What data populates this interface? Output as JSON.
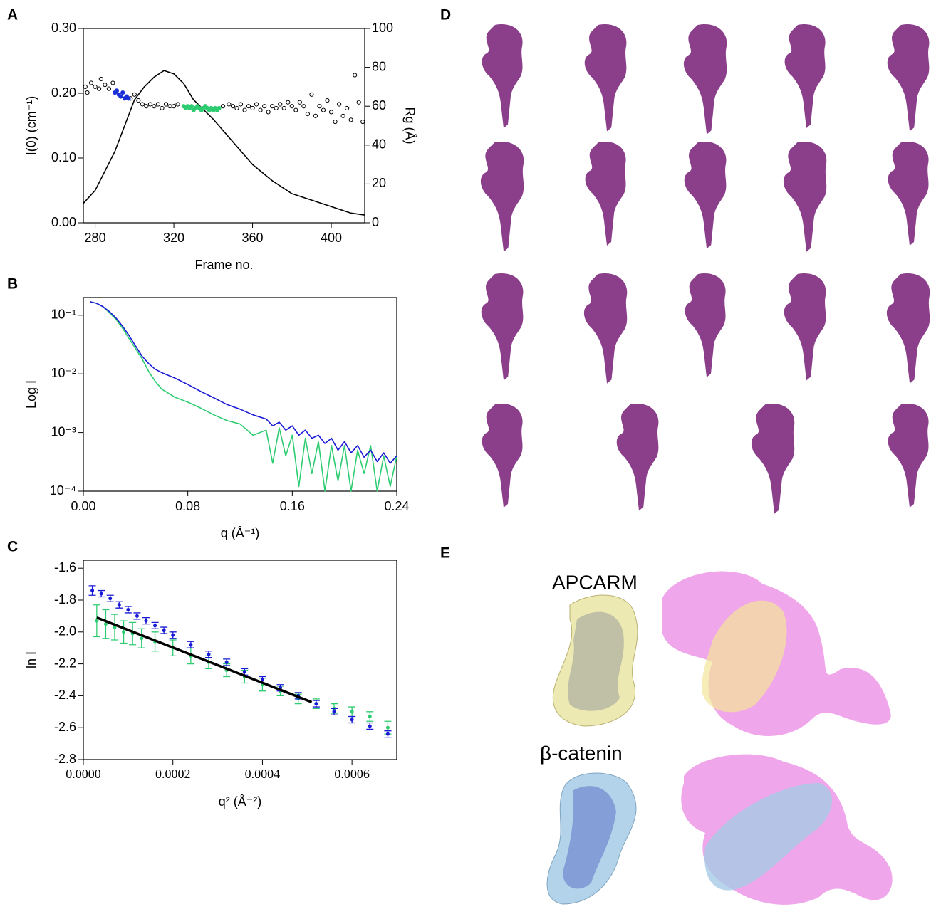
{
  "chart_data": [
    {
      "panel": "A",
      "type": "line",
      "xlabel": "Frame no.",
      "ylabel": "I(0) (cm⁻¹)",
      "y2label": "Rg (Å)",
      "xlim": [
        274,
        417
      ],
      "xticks": [
        280,
        320,
        360,
        400
      ],
      "ylim": [
        0,
        0.3
      ],
      "yticks": [
        {
          "value": 0,
          "label": "0.00"
        },
        {
          "value": 0.1,
          "label": "0.10"
        },
        {
          "value": 0.2,
          "label": "0.20"
        },
        {
          "value": 0.3,
          "label": "0.30"
        }
      ],
      "y2lim": [
        0,
        100
      ],
      "y2ticks": [
        0,
        20,
        40,
        60,
        80,
        100
      ],
      "series": [
        {
          "type": "line",
          "color": "#000000",
          "x": [
            274,
            280,
            290,
            300,
            305,
            310,
            315,
            320,
            325,
            330,
            340,
            350,
            360,
            370,
            380,
            390,
            400,
            410,
            417
          ],
          "values": [
            0.03,
            0.05,
            0.11,
            0.19,
            0.21,
            0.225,
            0.235,
            0.23,
            0.215,
            0.19,
            0.16,
            0.125,
            0.09,
            0.065,
            0.045,
            0.035,
            0.025,
            0.015,
            0.012
          ]
        },
        {
          "type": "scatter",
          "axis": "y2",
          "marker": "open",
          "color": "#000000",
          "x": [
            275,
            276,
            278,
            280,
            282,
            283,
            285,
            287,
            289,
            298,
            300,
            302,
            304,
            306,
            308,
            310,
            312,
            314,
            316,
            318,
            320,
            322,
            345,
            348,
            350,
            352,
            354,
            356,
            358,
            360,
            362,
            364,
            366,
            368,
            370,
            372,
            374,
            376,
            378,
            380,
            382,
            384,
            386,
            388,
            390,
            392,
            394,
            396,
            398,
            400,
            402,
            404,
            406,
            408,
            410,
            412,
            414,
            416
          ],
          "values": [
            70,
            67,
            72,
            70,
            69,
            74,
            71,
            69,
            72,
            64,
            66,
            63,
            61,
            60,
            61,
            60,
            61,
            59,
            61,
            60,
            60,
            61,
            60,
            61,
            60,
            59,
            61,
            58,
            60,
            59,
            61,
            58,
            60,
            57,
            60,
            59,
            61,
            59,
            62,
            60,
            58,
            62,
            60,
            56,
            66,
            55,
            60,
            58,
            63,
            57,
            52,
            61,
            55,
            59,
            53,
            76,
            62,
            52
          ]
        },
        {
          "type": "scatter",
          "axis": "y2",
          "marker": "filled",
          "color": "#1a2fd6",
          "x": [
            290,
            291,
            292,
            293,
            294,
            295,
            296,
            297
          ],
          "values": [
            67,
            68,
            66,
            65,
            67,
            64,
            65,
            64
          ]
        },
        {
          "type": "scatter",
          "axis": "y2",
          "marker": "filled",
          "color": "#2ecc71",
          "x": [
            325,
            326,
            327,
            328,
            329,
            330,
            331,
            332,
            333,
            334,
            335,
            336,
            337,
            338,
            339,
            340,
            341,
            342,
            343
          ],
          "values": [
            60,
            59,
            60,
            59,
            60,
            58,
            59,
            60,
            59,
            58,
            59,
            60,
            59,
            58,
            59,
            58,
            59,
            58,
            59
          ]
        }
      ]
    },
    {
      "panel": "B",
      "type": "line",
      "xlabel": "q (Å⁻¹)",
      "ylabel": "Log I",
      "log_y": true,
      "xlim": [
        0,
        0.24
      ],
      "xticks": [
        {
          "value": 0,
          "label": "0.00"
        },
        0.08,
        0.16,
        0.24
      ],
      "ylim": [
        0.0001,
        0.2
      ],
      "yticks": [
        {
          "value": 0.0001,
          "label": "10⁻⁴"
        },
        {
          "value": 0.001,
          "label": "10⁻³"
        },
        {
          "value": 0.01,
          "label": "10⁻²"
        },
        {
          "value": 0.1,
          "label": "10⁻¹"
        }
      ],
      "series": [
        {
          "color": "#2ecc71",
          "x": [
            0.005,
            0.01,
            0.015,
            0.02,
            0.025,
            0.03,
            0.035,
            0.04,
            0.045,
            0.05,
            0.055,
            0.06,
            0.07,
            0.08,
            0.09,
            0.1,
            0.11,
            0.12,
            0.13,
            0.14,
            0.145,
            0.15,
            0.155,
            0.16,
            0.165,
            0.17,
            0.175,
            0.18,
            0.185,
            0.19,
            0.195,
            0.2,
            0.205,
            0.21,
            0.215,
            0.22,
            0.225,
            0.23,
            0.235,
            0.24
          ],
          "values": [
            0.17,
            0.16,
            0.14,
            0.11,
            0.085,
            0.06,
            0.04,
            0.027,
            0.018,
            0.011,
            0.0075,
            0.0055,
            0.004,
            0.0033,
            0.0026,
            0.002,
            0.0016,
            0.0014,
            0.0009,
            0.0011,
            0.0003,
            0.0012,
            0.0004,
            0.0009,
            0.00012,
            0.0008,
            0.0002,
            0.0007,
            0.0001,
            0.0006,
            0.00015,
            0.0006,
            0.0001,
            0.0005,
            0.0002,
            0.0006,
            0.0001,
            0.0004,
            0.00012,
            0.0004
          ]
        },
        {
          "color": "#1a1ad6",
          "x": [
            0.005,
            0.01,
            0.015,
            0.02,
            0.025,
            0.03,
            0.035,
            0.04,
            0.045,
            0.05,
            0.055,
            0.06,
            0.07,
            0.08,
            0.09,
            0.1,
            0.11,
            0.12,
            0.13,
            0.14,
            0.145,
            0.15,
            0.155,
            0.16,
            0.165,
            0.17,
            0.175,
            0.18,
            0.185,
            0.19,
            0.195,
            0.2,
            0.205,
            0.21,
            0.215,
            0.22,
            0.225,
            0.23,
            0.235,
            0.24
          ],
          "values": [
            0.17,
            0.16,
            0.14,
            0.115,
            0.09,
            0.065,
            0.045,
            0.03,
            0.02,
            0.015,
            0.012,
            0.0105,
            0.0085,
            0.0066,
            0.005,
            0.0039,
            0.003,
            0.0025,
            0.002,
            0.0017,
            0.0013,
            0.0015,
            0.0011,
            0.0013,
            0.0009,
            0.0011,
            0.0008,
            0.0009,
            0.00065,
            0.0008,
            0.0005,
            0.0007,
            0.00045,
            0.0006,
            0.00038,
            0.0005,
            0.00032,
            0.00045,
            0.0003,
            0.0004
          ]
        }
      ]
    },
    {
      "panel": "C",
      "type": "scatter",
      "xlabel": "q² (Å⁻²)",
      "ylabel": "ln I",
      "xlim": [
        0,
        0.0007
      ],
      "xticks": [
        {
          "value": 0,
          "label": "0.0000"
        },
        0.0002,
        0.0004,
        0.0006
      ],
      "ylim": [
        -2.8,
        -1.55
      ],
      "yticks": [
        -1.6,
        -1.8,
        {
          "value": -2,
          "label": "-2.0"
        },
        -2.2,
        -2.4,
        -2.6,
        -2.8
      ],
      "series": [
        {
          "color": "#2ecc71",
          "x": [
            3e-05,
            5e-05,
            7e-05,
            9e-05,
            0.00011,
            0.00013,
            0.00016,
            0.0002,
            0.00024,
            0.00028,
            0.00032,
            0.00036,
            0.0004,
            0.00044,
            0.00048,
            0.00052,
            0.00056,
            0.0006,
            0.00064,
            0.00068
          ],
          "values": [
            -1.93,
            -1.95,
            -1.97,
            -2.0,
            -2.01,
            -2.04,
            -2.06,
            -2.1,
            -2.15,
            -2.19,
            -2.24,
            -2.28,
            -2.33,
            -2.37,
            -2.42,
            -2.45,
            -2.48,
            -2.5,
            -2.53,
            -2.6
          ],
          "errors": [
            0.1,
            0.09,
            0.08,
            0.07,
            0.07,
            0.06,
            0.06,
            0.05,
            0.05,
            0.04,
            0.04,
            0.04,
            0.04,
            0.03,
            0.03,
            0.03,
            0.03,
            0.03,
            0.03,
            0.04
          ]
        },
        {
          "color": "#1a1ad6",
          "x": [
            2e-05,
            4e-05,
            6e-05,
            8e-05,
            0.0001,
            0.00012,
            0.00014,
            0.00016,
            0.00018,
            0.0002,
            0.00024,
            0.00028,
            0.00032,
            0.00036,
            0.0004,
            0.00044,
            0.00048,
            0.00052,
            0.00056,
            0.0006,
            0.00064,
            0.00068
          ],
          "values": [
            -1.74,
            -1.76,
            -1.79,
            -1.83,
            -1.86,
            -1.9,
            -1.93,
            -1.96,
            -1.99,
            -2.02,
            -2.08,
            -2.14,
            -2.19,
            -2.25,
            -2.3,
            -2.35,
            -2.4,
            -2.45,
            -2.5,
            -2.55,
            -2.59,
            -2.64
          ],
          "errors": [
            0.03,
            0.02,
            0.02,
            0.02,
            0.02,
            0.02,
            0.02,
            0.02,
            0.02,
            0.02,
            0.02,
            0.02,
            0.02,
            0.02,
            0.02,
            0.02,
            0.02,
            0.02,
            0.02,
            0.02,
            0.02,
            0.02
          ]
        },
        {
          "type": "line",
          "color": "#000000",
          "x": [
            3e-05,
            0.00051
          ],
          "values": [
            -1.91,
            -2.44
          ]
        }
      ]
    }
  ],
  "figure": {
    "panel_d": "D",
    "panel_e": "E",
    "structures": [
      "APCARM",
      "β-catenin"
    ]
  }
}
